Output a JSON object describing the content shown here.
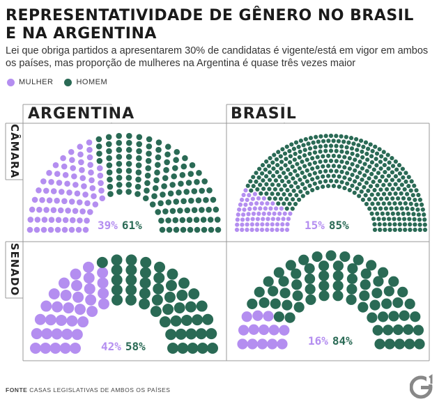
{
  "title": "REPRESENTATIVIDADE DE GÊNERO NO BRASIL E NA ARGENTINA",
  "subtitle": "Lei que obriga partidos a apresentarem 30% de candidatas é vigente/está em vigor em ambos os países, mas proporção de mulheres na Argentina é quase três vezes maior",
  "legend": [
    {
      "label": "MULHER",
      "color": "#b48ef0"
    },
    {
      "label": "HOMEM",
      "color": "#2a6a55"
    }
  ],
  "columns": [
    "ARGENTINA",
    "BRASIL"
  ],
  "rows": [
    "CÂMARA",
    "SENADO"
  ],
  "footer": {
    "label": "FONTE",
    "text": "CASAS LEGISLATIVAS DE AMBOS OS PAÍSES"
  },
  "logo_text": "G¹",
  "colors": {
    "women": "#b48ef0",
    "men": "#2a6a55",
    "border": "#999999"
  },
  "chart_data": [
    {
      "type": "parliament",
      "country": "ARGENTINA",
      "chamber": "CÂMARA",
      "women_pct": 39,
      "men_pct": 61,
      "women_label": "39%",
      "men_label": "61%",
      "seat_rows": [
        14,
        16,
        18,
        20,
        22,
        24,
        26,
        28,
        30
      ],
      "seats": 198
    },
    {
      "type": "parliament",
      "country": "BRASIL",
      "chamber": "CÂMARA",
      "women_pct": 15,
      "men_pct": 85,
      "women_label": "15%",
      "men_label": "85%",
      "seat_rows": [
        26,
        29,
        32,
        35,
        38,
        41,
        44,
        47,
        51,
        56,
        59
      ],
      "seats": 458
    },
    {
      "type": "parliament",
      "country": "ARGENTINA",
      "chamber": "SENADO",
      "women_pct": 42,
      "men_pct": 58,
      "women_label": "42%",
      "men_label": "58%",
      "seat_rows": [
        12,
        14,
        16,
        18,
        20
      ],
      "seats": 80
    },
    {
      "type": "parliament",
      "country": "BRASIL",
      "chamber": "SENADO",
      "women_pct": 16,
      "men_pct": 84,
      "women_label": "16%",
      "men_label": "84%",
      "seat_rows": [
        12,
        14,
        16,
        18,
        21
      ],
      "seats": 81
    }
  ]
}
